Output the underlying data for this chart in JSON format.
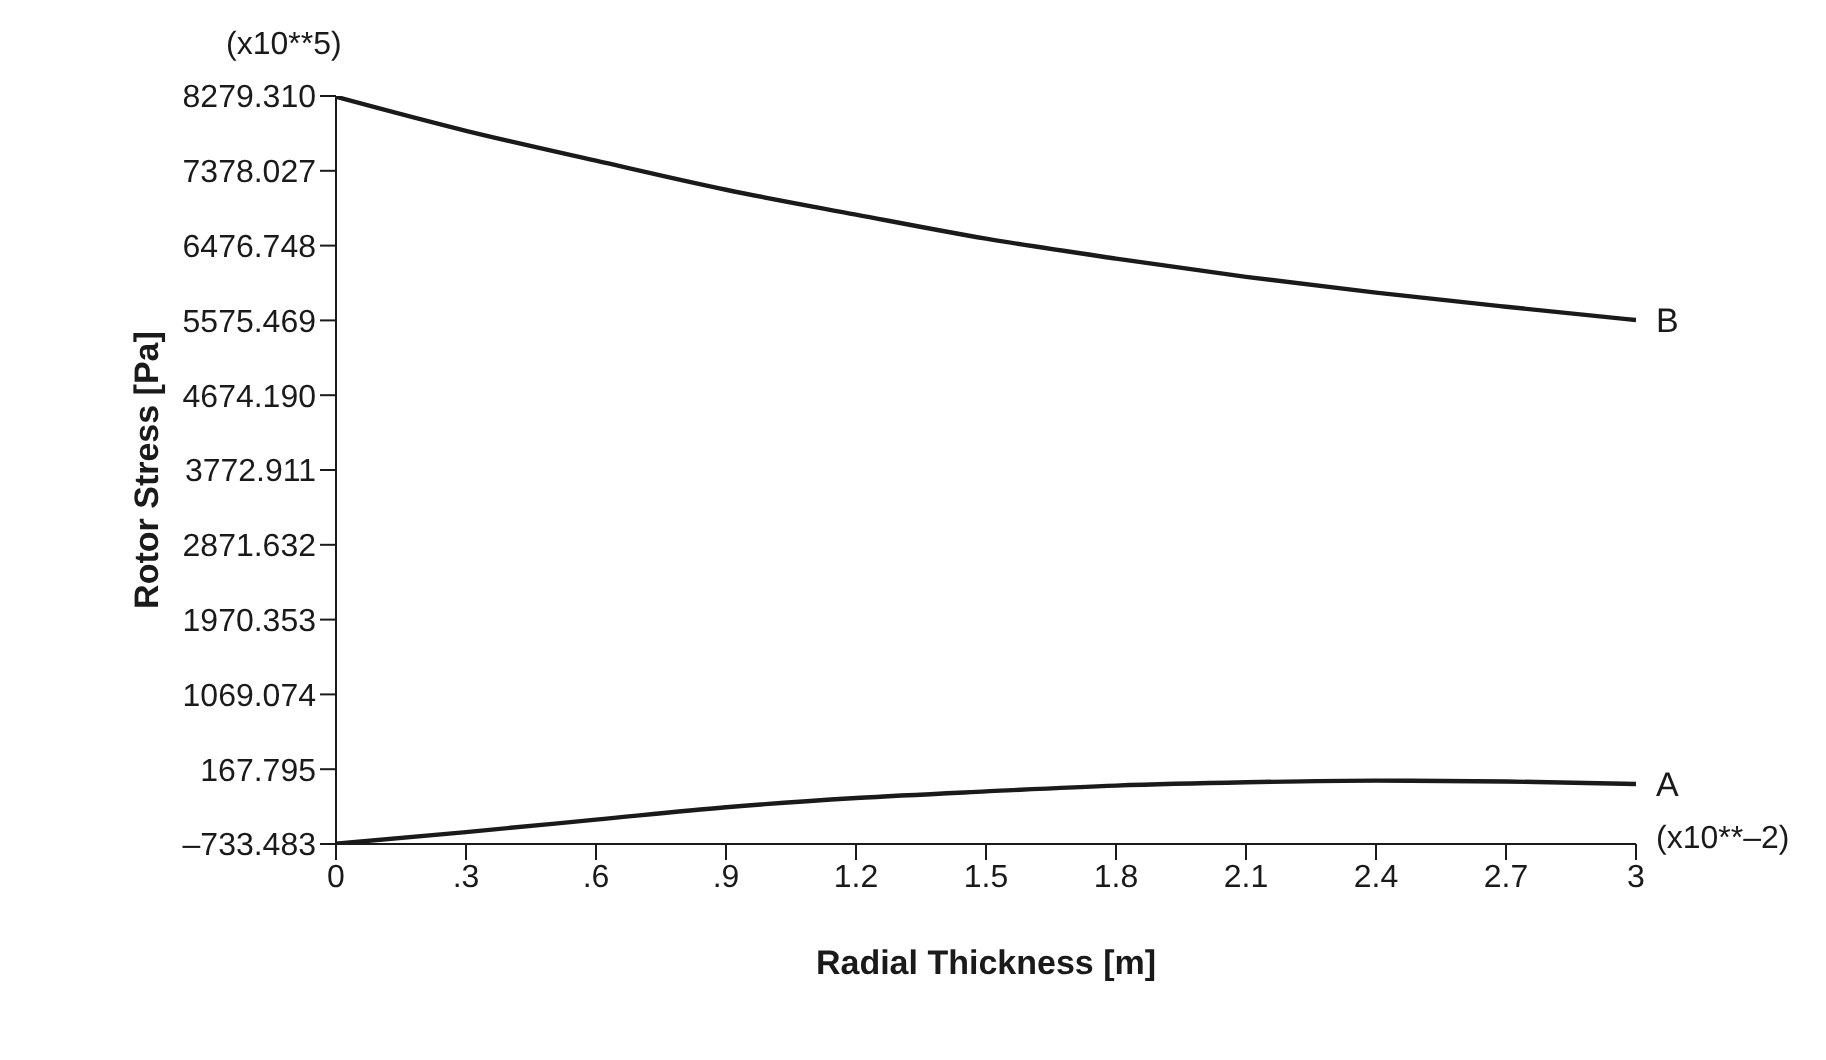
{
  "chart_data": {
    "type": "line",
    "xlabel": "Radial Thickness [m]",
    "ylabel": "Rotor Stress [Pa]",
    "x": [
      0,
      0.3,
      0.6,
      0.9,
      1.2,
      1.5,
      1.8,
      2.1,
      2.4,
      2.7,
      3
    ],
    "series": [
      {
        "name": "B",
        "color": "#1a1a1a",
        "values": [
          8270,
          7860,
          7500,
          7150,
          6850,
          6560,
          6320,
          6100,
          5910,
          5740,
          5580
        ]
      },
      {
        "name": "A",
        "color": "#1a1a1a",
        "values": [
          -730,
          -590,
          -440,
          -290,
          -180,
          -100,
          -30,
          10,
          30,
          20,
          -10
        ]
      }
    ],
    "xlim": [
      0,
      3
    ],
    "xticks": [
      0,
      {
        "value": 0.3,
        "label": ".3"
      },
      {
        "value": 0.6,
        "label": ".6"
      },
      {
        "value": 0.9,
        "label": ".9"
      },
      1.2,
      1.5,
      1.8,
      2.1,
      2.4,
      2.7,
      3
    ],
    "ylim": [
      -733.483,
      8279.31
    ],
    "yticks": [
      {
        "value": -733.483,
        "label": "–733.483"
      },
      167.795,
      1069.074,
      1970.353,
      2871.632,
      3772.911,
      {
        "value": 4674.19,
        "label": "4674.190"
      },
      5575.469,
      6476.748,
      7378.027,
      {
        "value": 8279.31,
        "label": "8279.310"
      }
    ],
    "annotations": [
      "(x10**5)",
      "(x10**–2)"
    ],
    "grid": false,
    "legend": false,
    "marker": "none",
    "line_style": "solid"
  }
}
